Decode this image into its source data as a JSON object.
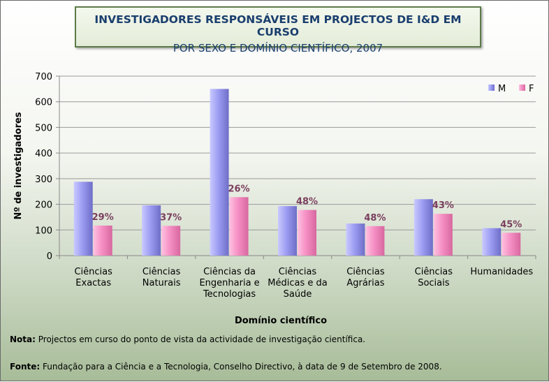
{
  "chart_data": {
    "type": "bar",
    "title": "INVESTIGADORES RESPONSÁVEIS EM PROJECTOS DE I&D EM CURSO",
    "subtitle": "POR SEXO E DOMÍNIO CIENTÍFICO, 2007",
    "xlabel": "Domínio científico",
    "ylabel": "Nº de investigadores",
    "ylim": [
      0,
      700
    ],
    "yticks": [
      0,
      100,
      200,
      300,
      400,
      500,
      600,
      700
    ],
    "grid": true,
    "legend_position": "top-right",
    "categories": [
      [
        "Ciências",
        "Exactas"
      ],
      [
        "Ciências",
        "Naturais"
      ],
      [
        "Ciências da",
        "Engenharia e",
        "Tecnologias"
      ],
      [
        "Ciências",
        "Médicas e da",
        "Saúde"
      ],
      [
        "Ciências",
        "Agrárias"
      ],
      [
        "Ciências",
        "Sociais"
      ],
      [
        "Humanidades"
      ]
    ],
    "series": [
      {
        "name": "M",
        "color": "#9c9cf2",
        "values": [
          288,
          196,
          650,
          193,
          125,
          220,
          107
        ]
      },
      {
        "name": "F",
        "color": "#f58fc4",
        "values": [
          117,
          116,
          228,
          178,
          115,
          163,
          89
        ]
      }
    ],
    "data_labels": [
      "29%",
      "37%",
      "26%",
      "48%",
      "48%",
      "43%",
      "45%"
    ],
    "data_label_color": "#7a3f5e"
  },
  "notes": {
    "nota_label": "Nota:",
    "nota_text": "Projectos em curso do ponto de vista da actividade de investigação científica.",
    "fonte_label": "Fonte:",
    "fonte_text": "Fundação para a Ciência e a Tecnologia, Conselho Directivo, à data de 9 de Setembro de 2008."
  }
}
